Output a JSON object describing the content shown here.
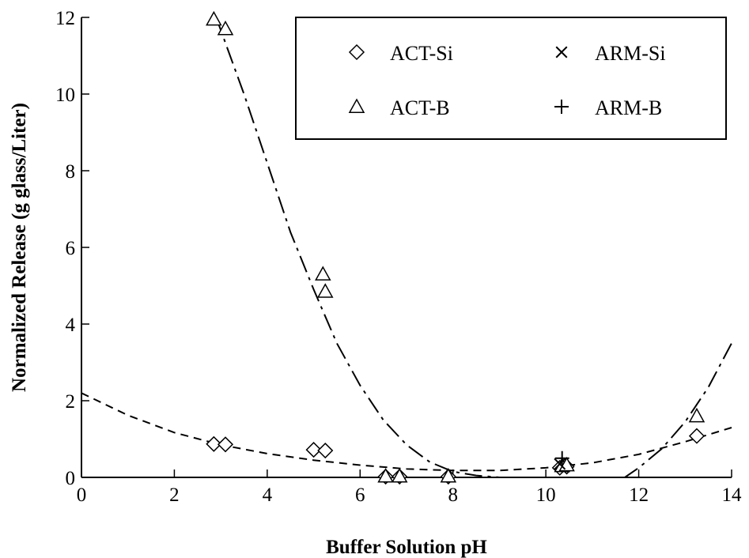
{
  "chart_data": {
    "type": "scatter",
    "title": "",
    "xlabel": "Buffer Solution pH",
    "ylabel": "Normalized Release (g glass/Liter)",
    "xlim": [
      0,
      14
    ],
    "ylim": [
      0,
      12
    ],
    "x_ticks": [
      0,
      2,
      4,
      6,
      8,
      10,
      12,
      14
    ],
    "y_ticks": [
      0,
      2,
      4,
      6,
      8,
      10,
      12
    ],
    "grid": false,
    "legend_position": "top-right",
    "series": [
      {
        "name": "ACT-Si",
        "marker": "diamond",
        "points": [
          [
            2.85,
            0.87
          ],
          [
            3.1,
            0.86
          ],
          [
            5.0,
            0.72
          ],
          [
            5.25,
            0.7
          ],
          [
            6.55,
            0.02
          ],
          [
            6.85,
            0.02
          ],
          [
            7.9,
            0.02
          ],
          [
            10.3,
            0.25
          ],
          [
            10.45,
            0.28
          ],
          [
            13.25,
            1.08
          ]
        ]
      },
      {
        "name": "ACT-B",
        "marker": "triangle",
        "points": [
          [
            2.85,
            11.95
          ],
          [
            3.1,
            11.7
          ],
          [
            5.2,
            5.3
          ],
          [
            5.25,
            4.85
          ],
          [
            6.55,
            0.03
          ],
          [
            6.85,
            0.03
          ],
          [
            7.9,
            0.03
          ],
          [
            10.35,
            0.3
          ],
          [
            10.45,
            0.32
          ],
          [
            13.25,
            1.6
          ]
        ]
      },
      {
        "name": "ARM-Si",
        "marker": "x",
        "points": [
          [
            10.3,
            0.35
          ]
        ]
      },
      {
        "name": "ARM-B",
        "marker": "plus",
        "points": [
          [
            10.35,
            0.5
          ]
        ]
      }
    ],
    "fit_curves": [
      {
        "style": "dashed",
        "points": [
          [
            0,
            2.2
          ],
          [
            1,
            1.62
          ],
          [
            2,
            1.17
          ],
          [
            3,
            0.85
          ],
          [
            4,
            0.62
          ],
          [
            5,
            0.45
          ],
          [
            6,
            0.32
          ],
          [
            7,
            0.22
          ],
          [
            8,
            0.18
          ],
          [
            9,
            0.18
          ],
          [
            10,
            0.25
          ],
          [
            11,
            0.38
          ],
          [
            12,
            0.6
          ],
          [
            13,
            0.93
          ],
          [
            14,
            1.3
          ]
        ]
      },
      {
        "style": "dash-dot",
        "points": [
          [
            2.9,
            12.0
          ],
          [
            3.5,
            10.0
          ],
          [
            4.0,
            8.2
          ],
          [
            4.5,
            6.4
          ],
          [
            5.0,
            4.9
          ],
          [
            5.5,
            3.5
          ],
          [
            6.0,
            2.4
          ],
          [
            6.5,
            1.5
          ],
          [
            7.0,
            0.85
          ],
          [
            7.5,
            0.4
          ],
          [
            8.0,
            0.15
          ],
          [
            8.5,
            0.05
          ],
          [
            9.0,
            0.0
          ],
          [
            11.7,
            0.0
          ],
          [
            12.0,
            0.25
          ],
          [
            12.5,
            0.75
          ],
          [
            13.0,
            1.45
          ],
          [
            13.5,
            2.35
          ],
          [
            14.0,
            3.5
          ]
        ]
      }
    ]
  }
}
